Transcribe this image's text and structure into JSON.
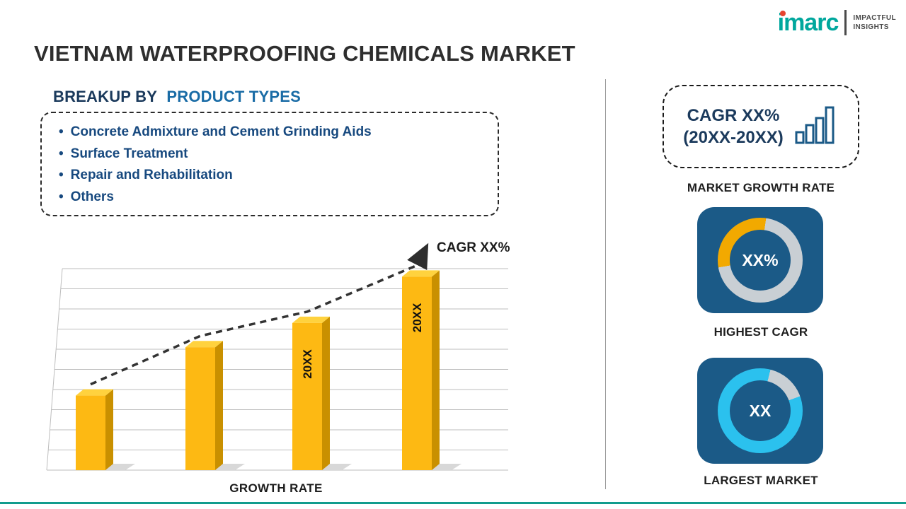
{
  "page": {
    "title": "VIETNAM WATERPROOFING CHEMICALS MARKET"
  },
  "logo": {
    "brand": "imarc",
    "tagline_top": "IMPACTFUL",
    "tagline_bottom": "INSIGHTS"
  },
  "breakup": {
    "heading_prefix": "BREAKUP BY",
    "heading_highlight": "PRODUCT TYPES",
    "bullet": "•",
    "items": [
      "Concrete Admixture and Cement Grinding Aids",
      "Surface Treatment",
      "Repair and Rehabilitation",
      "Others"
    ]
  },
  "chart_data": {
    "type": "bar",
    "title": "GROWTH RATE",
    "xlabel": "GROWTH RATE",
    "ylabel": "",
    "categories": [
      "",
      "",
      "20XX",
      "20XX"
    ],
    "values": [
      37,
      61,
      73,
      96
    ],
    "bar_labels": [
      "",
      "",
      "20XX",
      "20XX"
    ],
    "ylim": [
      0,
      100
    ],
    "grid": true,
    "legend": "none",
    "trend_label": "CAGR XX%",
    "bar_color": "#FDB913"
  },
  "sidebar": {
    "cagr_card": {
      "line1": "CAGR XX%",
      "line2": "(20XX-20XX)"
    },
    "market_growth_rate_label": "MARKET GROWTH RATE",
    "highest_cagr": {
      "value": "XX%",
      "label": "HIGHEST CAGR"
    },
    "largest_market": {
      "value": "XX",
      "label": "LARGEST MARKET"
    }
  },
  "colors": {
    "accent_teal": "#129C8D",
    "bar_yellow": "#FDB913",
    "bar_side": "#C99000",
    "bar_top": "#FFD23E",
    "tile_blue": "#1B5A87",
    "donut_gray": "#C9CFD4",
    "donut_orange": "#F2A900",
    "donut_cyan": "#2BC1EE",
    "heading_blue": "#1A6CA6",
    "text_navy": "#1B3A5C",
    "list_text": "#17497F"
  }
}
